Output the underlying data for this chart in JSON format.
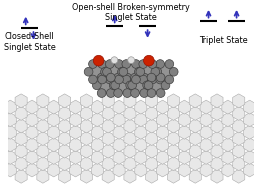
{
  "bg_color": "#ffffff",
  "arrow_color": "#3333bb",
  "line_color": "#000000",
  "graphene_face": "#e8e8e8",
  "graphene_edge": "#aaaaaa",
  "mol_carbon_color": "#808080",
  "mol_carbon_edge": "#404040",
  "mol_carbon_r": 4.5,
  "oxygen_color": "#cc2200",
  "oxygen_edge": "#991100",
  "oxygen_r": 5.5,
  "hydrogen_color": "#e0e0e0",
  "hydrogen_edge": "#999999",
  "hydrogen_r": 3.5,
  "bond_color": "#555555",
  "labels": {
    "closed_shell": "Closed-Shell\nSinglet State",
    "open_shell": "Open-shell Broken-symmetry\nSinglet State",
    "triplet": "Triplet State"
  },
  "font_size": 5.8,
  "figsize": [
    2.54,
    1.89
  ],
  "dpi": 100,
  "hex_r": 7.5,
  "graphene_rows": 9,
  "graphene_cols": 18
}
